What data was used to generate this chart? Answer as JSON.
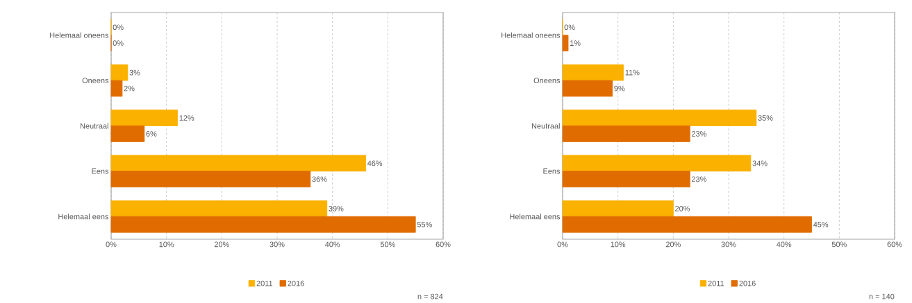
{
  "chart_data": [
    {
      "type": "bar",
      "orientation": "horizontal",
      "categories": [
        "Helemaal oneens",
        "Oneens",
        "Neutraal",
        "Eens",
        "Helemaal eens"
      ],
      "series": [
        {
          "name": "2011",
          "color": "#fbb100",
          "values": [
            0,
            3,
            12,
            46,
            39
          ],
          "value_labels": [
            "0%",
            "3%",
            "12%",
            "46%",
            "39%"
          ]
        },
        {
          "name": "2016",
          "color": "#e06c00",
          "values": [
            0,
            2,
            6,
            36,
            55
          ],
          "value_labels": [
            "0%",
            "2%",
            "6%",
            "36%",
            "55%"
          ]
        }
      ],
      "xlim": [
        0,
        60
      ],
      "xticks": [
        {
          "value": 0,
          "label": "0%"
        },
        {
          "value": 10,
          "label": "10%"
        },
        {
          "value": 20,
          "label": "20%"
        },
        {
          "value": 30,
          "label": "30%"
        },
        {
          "value": 40,
          "label": "40%"
        },
        {
          "value": 50,
          "label": "50%"
        },
        {
          "value": 60,
          "label": "60%"
        }
      ],
      "grid": "x",
      "legend": "bottom",
      "annotations": [
        "n = 824"
      ]
    },
    {
      "type": "bar",
      "orientation": "horizontal",
      "categories": [
        "Helemaal oneens",
        "Oneens",
        "Neutraal",
        "Eens",
        "Helemaal eens"
      ],
      "series": [
        {
          "name": "2011",
          "color": "#fbb100",
          "values": [
            0,
            11,
            35,
            34,
            20
          ],
          "value_labels": [
            "0%",
            "11%",
            "35%",
            "34%",
            "20%"
          ]
        },
        {
          "name": "2016",
          "color": "#e06c00",
          "values": [
            1,
            9,
            23,
            23,
            45
          ],
          "value_labels": [
            "1%",
            "9%",
            "23%",
            "23%",
            "45%"
          ]
        }
      ],
      "xlim": [
        0,
        60
      ],
      "xticks": [
        {
          "value": 0,
          "label": "0%"
        },
        {
          "value": 10,
          "label": "10%"
        },
        {
          "value": 20,
          "label": "20%"
        },
        {
          "value": 30,
          "label": "30%"
        },
        {
          "value": 40,
          "label": "40%"
        },
        {
          "value": 50,
          "label": "50%"
        },
        {
          "value": 60,
          "label": "60%"
        }
      ],
      "grid": "x",
      "legend": "bottom",
      "annotations": [
        "n = 140"
      ]
    }
  ]
}
